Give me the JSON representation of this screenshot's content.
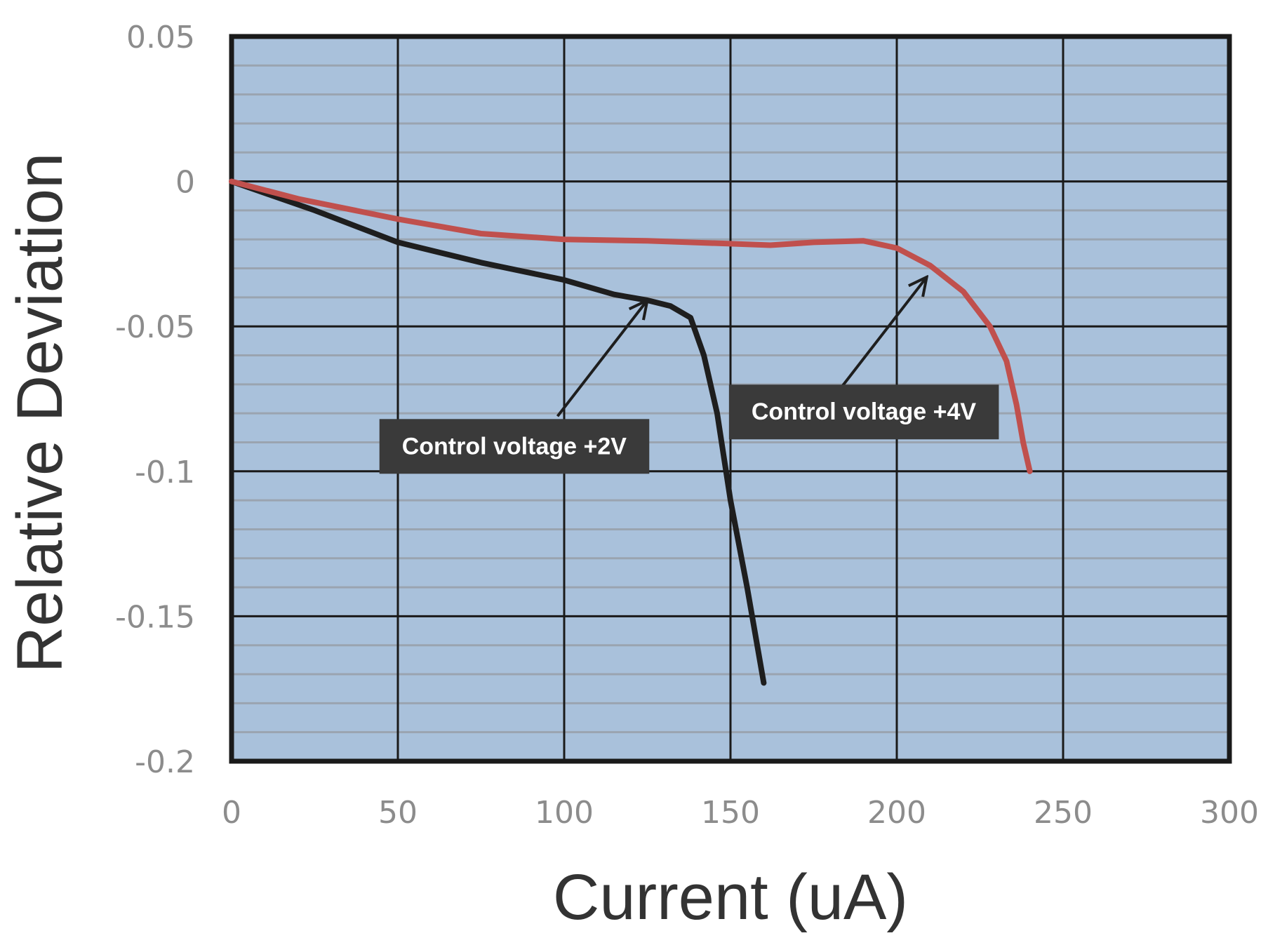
{
  "chart_data": {
    "type": "line",
    "title": "",
    "xlabel": "Current (uA)",
    "ylabel": "Relative Deviation",
    "xlim": [
      0,
      300
    ],
    "ylim": [
      -0.2,
      0.05
    ],
    "x_ticks": [
      0,
      50,
      100,
      150,
      200,
      250,
      300
    ],
    "x_tick_labels": [
      "0",
      "50",
      "100",
      "150",
      "200",
      "250",
      "300"
    ],
    "y_ticks": [
      0.05,
      0,
      -0.05,
      -0.1,
      -0.15,
      -0.2
    ],
    "y_tick_labels": [
      "0.05",
      "0",
      "-0.05",
      "-0.1",
      "-0.15",
      "-0.2"
    ],
    "grid": true,
    "background": "#a9c1db",
    "series": [
      {
        "color": "#1e1e1e",
        "x": [
          0,
          25,
          50,
          75,
          100,
          115,
          125,
          132,
          138,
          142,
          146,
          150,
          155,
          160
        ],
        "y": [
          0,
          -0.01,
          -0.021,
          -0.028,
          -0.034,
          -0.039,
          -0.041,
          -0.043,
          -0.047,
          -0.06,
          -0.08,
          -0.11,
          -0.14,
          -0.173
        ]
      },
      {
        "color": "#c0504d",
        "x": [
          0,
          20,
          50,
          75,
          100,
          125,
          150,
          162,
          175,
          190,
          200,
          210,
          220,
          228,
          233,
          236,
          238,
          240
        ],
        "y": [
          0,
          -0.006,
          -0.013,
          -0.018,
          -0.02,
          -0.0205,
          -0.0215,
          -0.022,
          -0.021,
          -0.0205,
          -0.023,
          -0.029,
          -0.038,
          -0.05,
          -0.062,
          -0.077,
          -0.09,
          -0.1
        ]
      }
    ],
    "annotations": [
      {
        "text": "Control voltage +2V",
        "arrow_from": [
          98,
          -0.081
        ],
        "arrow_to": [
          125,
          -0.041
        ]
      },
      {
        "text": "Control voltage +4V",
        "arrow_from": [
          182,
          -0.073
        ],
        "arrow_to": [
          209,
          -0.033
        ]
      }
    ]
  }
}
